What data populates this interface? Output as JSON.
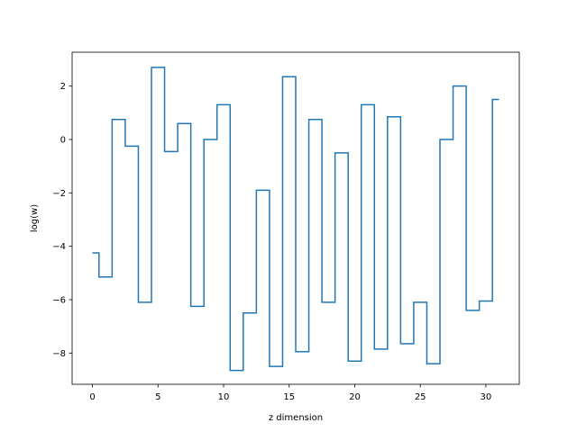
{
  "chart_data": {
    "type": "line",
    "drawstyle": "steps-mid",
    "xlabel": "z dimension",
    "ylabel": "log(w)",
    "xlim": [
      -1.55,
      32.55
    ],
    "ylim": [
      -9.17,
      3.27
    ],
    "x_ticks": [
      0,
      5,
      10,
      15,
      20,
      25,
      30
    ],
    "y_ticks": [
      -8,
      -6,
      -4,
      -2,
      0,
      2
    ],
    "grid": false,
    "line_color": "#1f77b4",
    "series": [
      {
        "x": [
          0,
          1,
          2,
          3,
          4,
          5,
          6,
          7,
          8,
          9,
          10,
          11,
          12,
          13,
          14,
          15,
          16,
          17,
          18,
          19,
          20,
          21,
          22,
          23,
          24,
          25,
          26,
          27,
          28,
          29,
          30,
          31
        ],
        "values": [
          -4.25,
          -5.15,
          0.75,
          -0.25,
          -6.1,
          2.7,
          -0.45,
          0.6,
          -6.25,
          0.0,
          1.3,
          -8.65,
          -6.5,
          -1.9,
          -8.5,
          2.35,
          -7.95,
          0.75,
          -6.1,
          -0.5,
          -8.3,
          1.3,
          -7.85,
          0.85,
          -7.65,
          -6.1,
          -8.4,
          0.0,
          2.0,
          -6.4,
          -6.05,
          1.5
        ]
      }
    ]
  }
}
